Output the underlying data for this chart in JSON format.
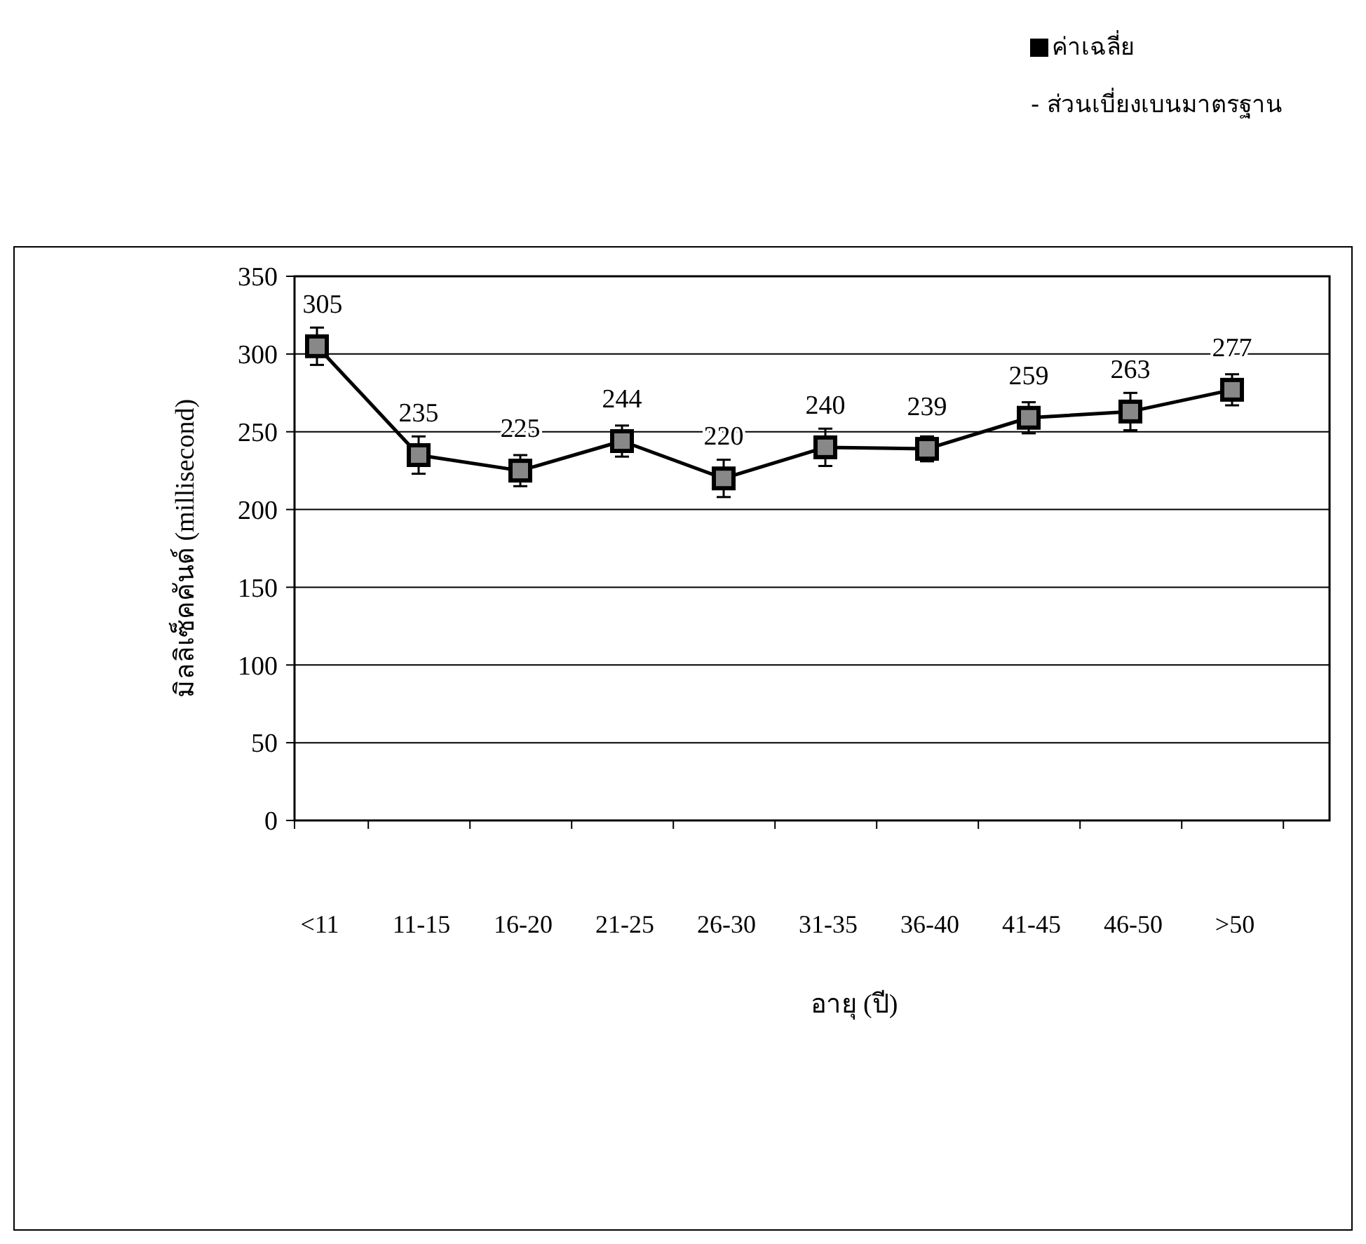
{
  "chart_data": {
    "type": "line",
    "xlabel": "อายุ (ปี)",
    "ylabel": "มิลลิเซ็คคันด์ (millisecond)",
    "categories": [
      "<11",
      "11-15",
      "16-20",
      "21-25",
      "26-30",
      "31-35",
      "36-40",
      "41-45",
      "46-50",
      ">50"
    ],
    "series": [
      {
        "name": "ค่าเฉลี่ย",
        "color": "#000000",
        "values": [
          305,
          235,
          225,
          244,
          220,
          240,
          239,
          259,
          263,
          277
        ],
        "errors": [
          12,
          12,
          10,
          10,
          12,
          12,
          8,
          10,
          12,
          10
        ]
      }
    ],
    "ylim": [
      0,
      350
    ],
    "yticks": [
      0,
      50,
      100,
      150,
      200,
      250,
      300,
      350
    ],
    "grid": "y",
    "marker": "square",
    "line_style": "solid",
    "data_labels": true,
    "legend": "top right",
    "annotations": [
      "- ส่วนเบี่ยงเบนมาตรฐาน"
    ]
  }
}
